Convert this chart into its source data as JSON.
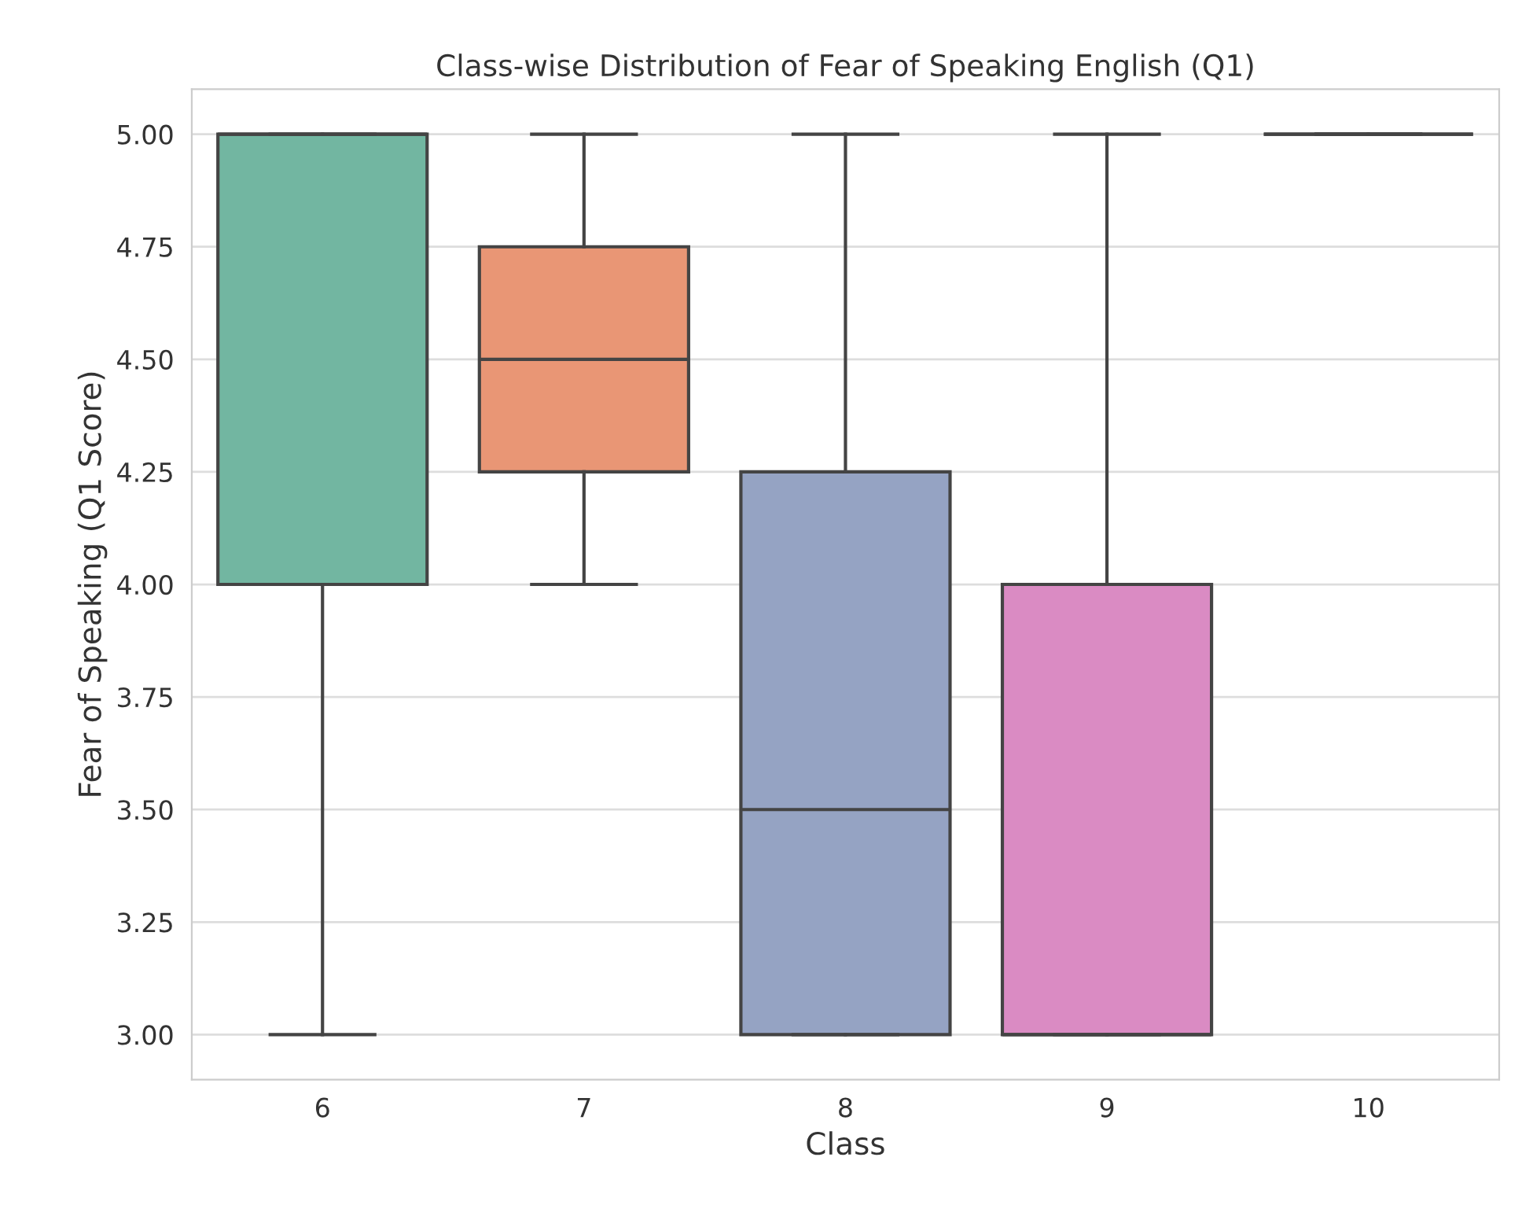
{
  "chart_data": {
    "type": "box",
    "title": "Class-wise Distribution of Fear of Speaking English (Q1)",
    "xlabel": "Class",
    "ylabel": "Fear of Speaking (Q1 Score)",
    "categories": [
      "6",
      "7",
      "8",
      "9",
      "10"
    ],
    "colors": [
      "#72b6a1",
      "#e99675",
      "#95a3c3",
      "#da8bc3",
      "#444444"
    ],
    "boxes": [
      {
        "low": 3.0,
        "q1": 4.0,
        "median": 5.0,
        "q3": 5.0,
        "high": 5.0
      },
      {
        "low": 4.0,
        "q1": 4.25,
        "median": 4.5,
        "q3": 4.75,
        "high": 5.0
      },
      {
        "low": 3.0,
        "q1": 3.0,
        "median": 3.5,
        "q3": 4.25,
        "high": 5.0
      },
      {
        "low": 3.0,
        "q1": 3.0,
        "median": 3.0,
        "q3": 4.0,
        "high": 5.0
      },
      {
        "low": 5.0,
        "q1": 5.0,
        "median": 5.0,
        "q3": 5.0,
        "high": 5.0
      }
    ],
    "ylim": [
      2.9,
      5.1
    ],
    "yticks": [
      {
        "value": 3,
        "label": "3.00"
      },
      {
        "value": 3.25,
        "label": "3.25"
      },
      {
        "value": 3.5,
        "label": "3.50"
      },
      {
        "value": 3.75,
        "label": "3.75"
      },
      {
        "value": 4,
        "label": "4.00"
      },
      {
        "value": 4.25,
        "label": "4.25"
      },
      {
        "value": 4.5,
        "label": "4.50"
      },
      {
        "value": 4.75,
        "label": "4.75"
      },
      {
        "value": 5,
        "label": "5.00"
      }
    ],
    "grid": "y"
  }
}
